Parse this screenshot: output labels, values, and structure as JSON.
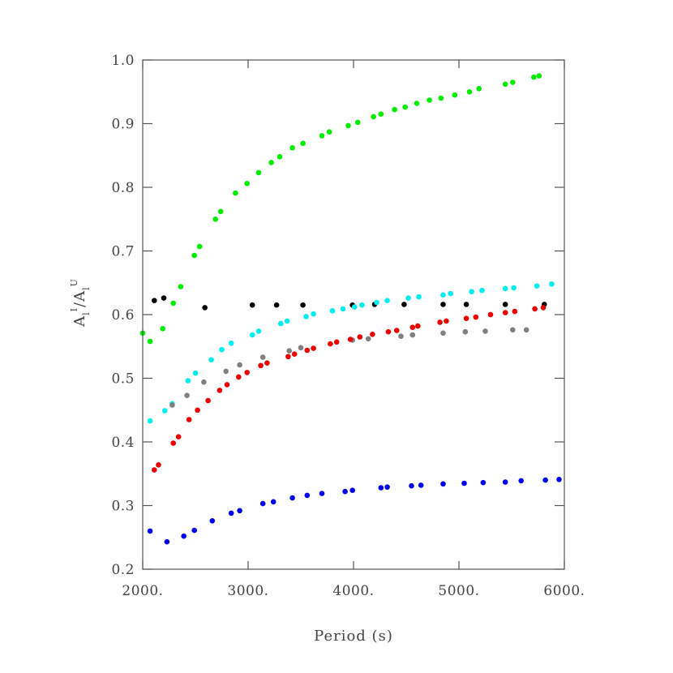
{
  "chart_data": {
    "type": "scatter",
    "title": "",
    "xlabel": "Period (s)",
    "ylabel": {
      "base": "A",
      "sub": "l",
      "sup_num": "I",
      "sup_den": "U",
      "slash": "/"
    },
    "xlim": [
      2000,
      6000
    ],
    "ylim": [
      0.2,
      1.0
    ],
    "x_ticks": [
      2000,
      3000,
      4000,
      5000,
      6000
    ],
    "x_tick_labels": [
      "2000.",
      "3000.",
      "4000.",
      "5000.",
      "6000."
    ],
    "y_ticks": [
      0.2,
      0.3,
      0.4,
      0.5,
      0.6,
      0.7,
      0.8,
      0.9,
      1.0
    ],
    "y_tick_labels": [
      "0.2",
      "0.3",
      "0.4",
      "0.5",
      "0.6",
      "0.7",
      "0.8",
      "0.9",
      "1.0"
    ],
    "grid": false,
    "legend": "none",
    "series": [
      {
        "color": "#00ee00",
        "x": [
          2000,
          2070,
          2190,
          2290,
          2360,
          2490,
          2540,
          2690,
          2740,
          2880,
          2990,
          3100,
          3220,
          3300,
          3420,
          3520,
          3700,
          3770,
          3950,
          4040,
          4190,
          4260,
          4390,
          4490,
          4600,
          4720,
          4830,
          4960,
          5100,
          5190,
          5440,
          5510,
          5710,
          5760
        ],
        "y": [
          0.571,
          0.558,
          0.578,
          0.618,
          0.644,
          0.693,
          0.707,
          0.75,
          0.762,
          0.791,
          0.806,
          0.823,
          0.839,
          0.848,
          0.862,
          0.869,
          0.881,
          0.887,
          0.897,
          0.902,
          0.911,
          0.915,
          0.922,
          0.926,
          0.932,
          0.937,
          0.94,
          0.945,
          0.95,
          0.955,
          0.962,
          0.965,
          0.973,
          0.975
        ]
      },
      {
        "color": "#000000",
        "x": [
          2110,
          2200,
          2590,
          3040,
          3270,
          3520,
          3990,
          4200,
          4480,
          4850,
          5070,
          5440,
          5810
        ],
        "y": [
          0.622,
          0.626,
          0.611,
          0.615,
          0.615,
          0.615,
          0.615,
          0.616,
          0.616,
          0.616,
          0.616,
          0.616,
          0.616
        ]
      },
      {
        "color": "#00eeee",
        "x": [
          2070,
          2210,
          2280,
          2430,
          2500,
          2650,
          2750,
          2840,
          3040,
          3100,
          3310,
          3370,
          3550,
          3620,
          3800,
          3900,
          4010,
          4080,
          4220,
          4320,
          4520,
          4620,
          4850,
          4920,
          5120,
          5220,
          5440,
          5520,
          5740,
          5880
        ],
        "y": [
          0.433,
          0.449,
          0.46,
          0.496,
          0.508,
          0.529,
          0.545,
          0.555,
          0.568,
          0.574,
          0.586,
          0.59,
          0.597,
          0.601,
          0.606,
          0.609,
          0.612,
          0.615,
          0.619,
          0.622,
          0.626,
          0.628,
          0.631,
          0.633,
          0.636,
          0.638,
          0.641,
          0.642,
          0.645,
          0.648
        ]
      },
      {
        "color": "#808080",
        "x": [
          2280,
          2420,
          2580,
          2790,
          2920,
          3140,
          3390,
          3500,
          3990,
          4140,
          4450,
          4560,
          4850,
          5060,
          5250,
          5510,
          5640
        ],
        "y": [
          0.458,
          0.473,
          0.494,
          0.511,
          0.521,
          0.533,
          0.543,
          0.548,
          0.56,
          0.562,
          0.566,
          0.568,
          0.571,
          0.573,
          0.574,
          0.576,
          0.576
        ]
      },
      {
        "color": "#ee0000",
        "x": [
          2110,
          2150,
          2290,
          2340,
          2440,
          2520,
          2620,
          2730,
          2800,
          2910,
          2990,
          3120,
          3180,
          3380,
          3440,
          3560,
          3620,
          3780,
          3840,
          3970,
          4060,
          4180,
          4330,
          4410,
          4560,
          4610,
          4820,
          4880,
          5070,
          5160,
          5300,
          5440,
          5530,
          5720,
          5800
        ],
        "y": [
          0.356,
          0.364,
          0.398,
          0.408,
          0.435,
          0.45,
          0.465,
          0.481,
          0.49,
          0.502,
          0.509,
          0.52,
          0.524,
          0.534,
          0.538,
          0.544,
          0.547,
          0.554,
          0.557,
          0.561,
          0.565,
          0.569,
          0.573,
          0.575,
          0.58,
          0.582,
          0.588,
          0.59,
          0.594,
          0.596,
          0.6,
          0.603,
          0.605,
          0.609,
          0.611
        ]
      },
      {
        "color": "#0000ee",
        "x": [
          2070,
          2230,
          2390,
          2490,
          2660,
          2840,
          2920,
          3140,
          3240,
          3420,
          3560,
          3700,
          3920,
          3990,
          4260,
          4320,
          4550,
          4640,
          4850,
          5050,
          5230,
          5440,
          5590,
          5820,
          5950
        ],
        "y": [
          0.26,
          0.243,
          0.252,
          0.261,
          0.276,
          0.288,
          0.292,
          0.303,
          0.306,
          0.312,
          0.316,
          0.319,
          0.322,
          0.324,
          0.328,
          0.329,
          0.331,
          0.332,
          0.334,
          0.335,
          0.336,
          0.337,
          0.339,
          0.34,
          0.341
        ]
      }
    ]
  }
}
